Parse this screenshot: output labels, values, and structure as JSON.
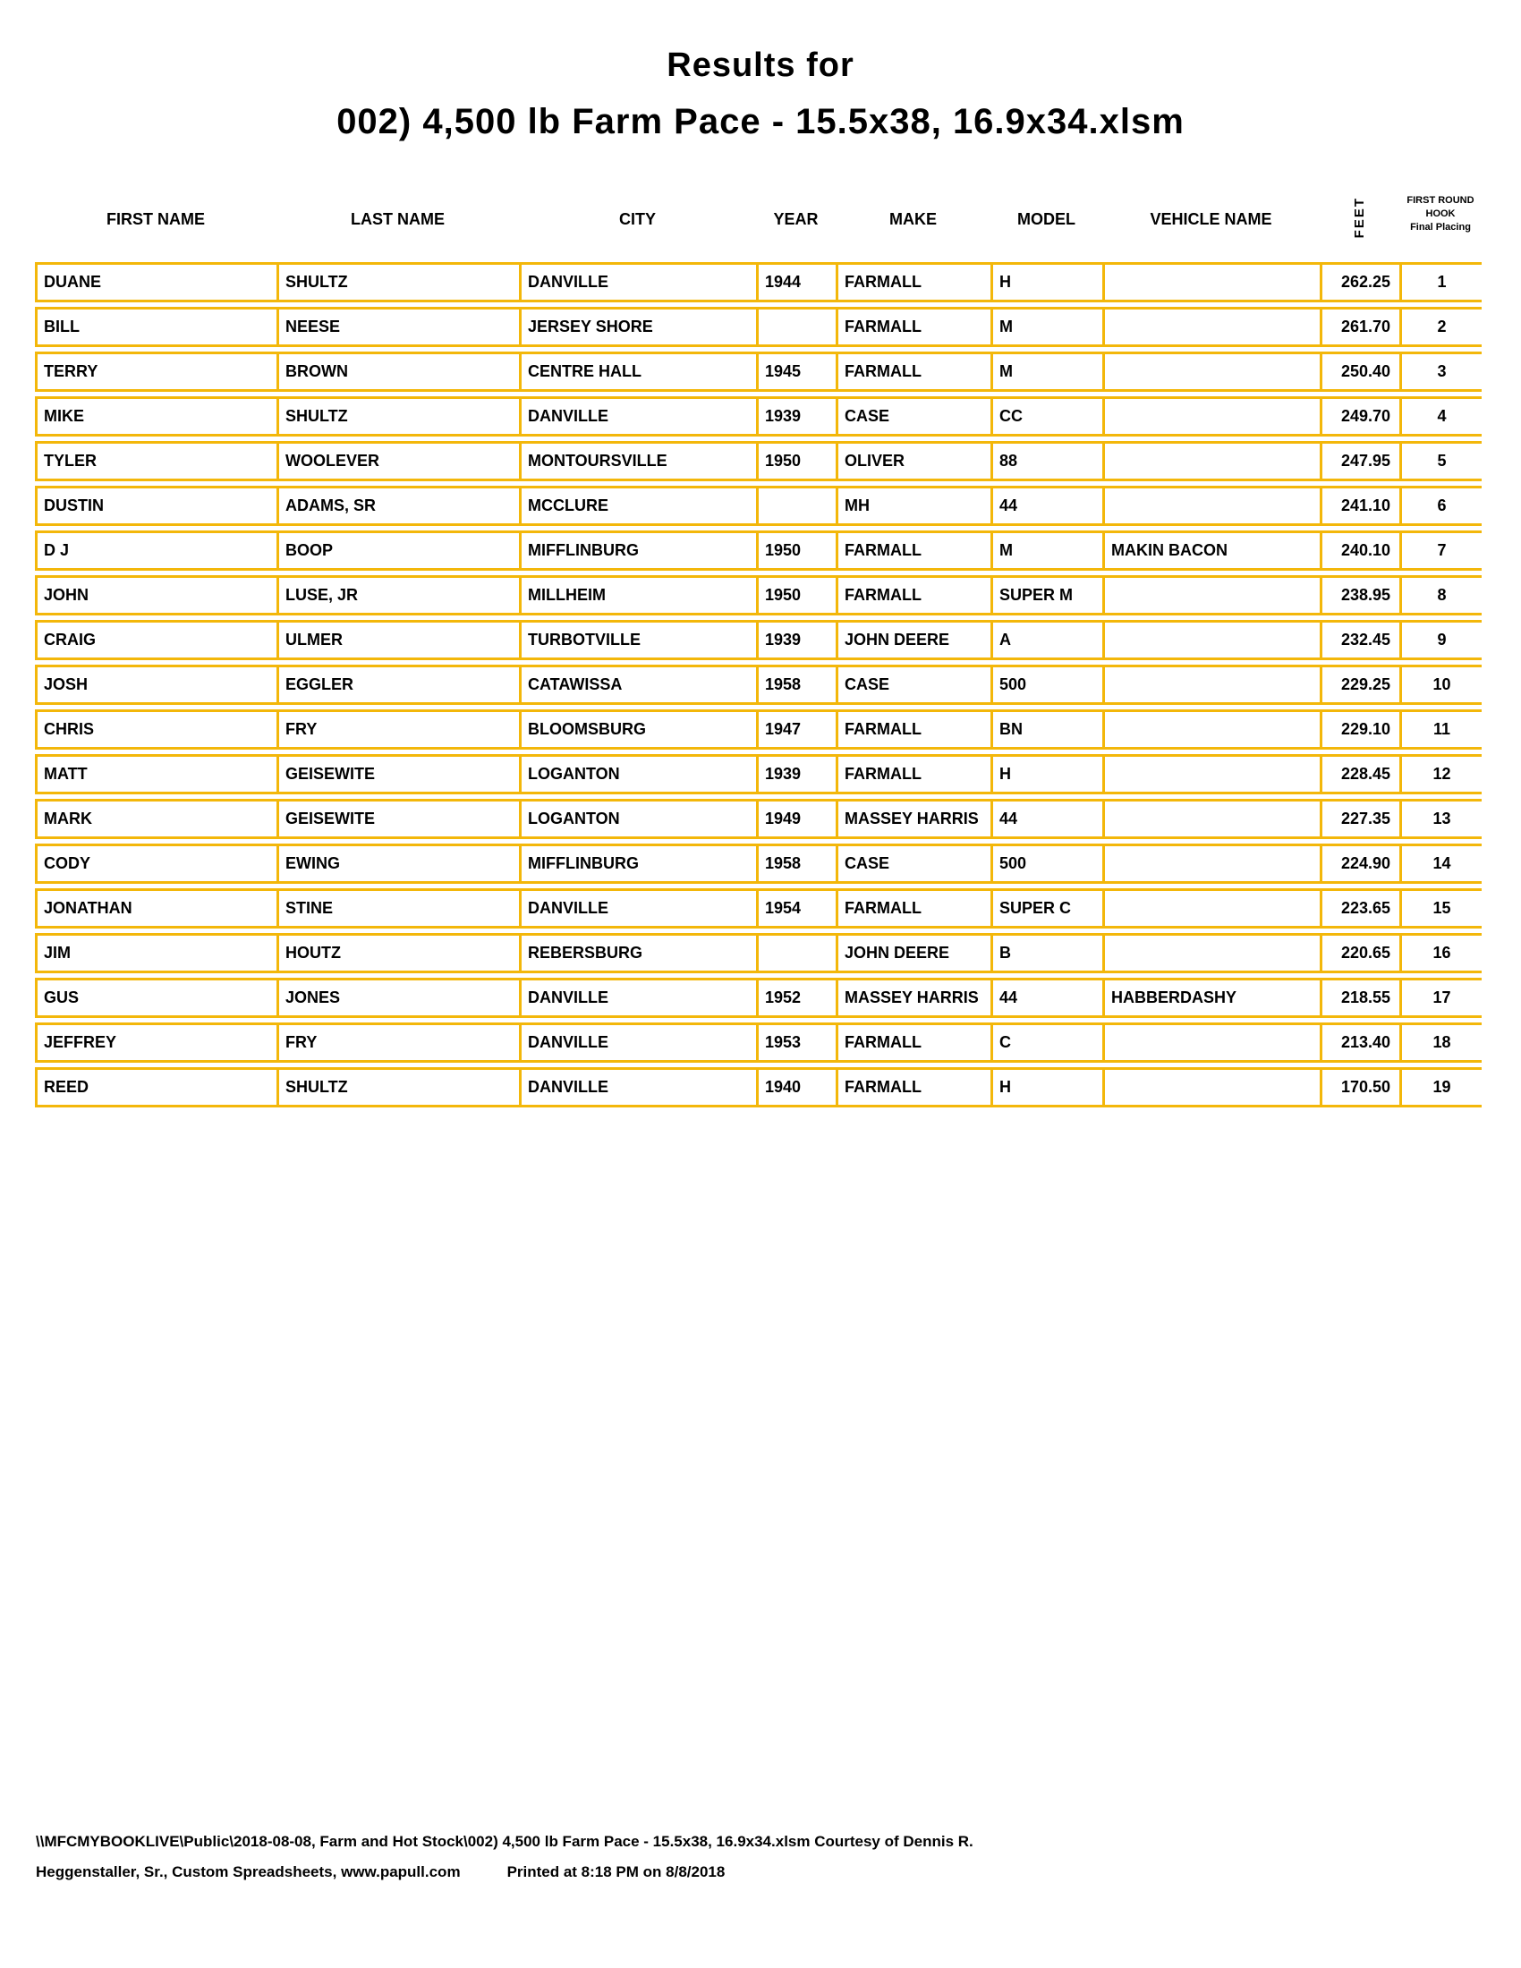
{
  "title": {
    "line1": "Results for",
    "line2": "002) 4,500 lb Farm Pace - 15.5x38, 16.9x34.xlsm"
  },
  "colors": {
    "border_gold": "#F3B70A",
    "text": "#000000",
    "background": "#FFFFFF"
  },
  "table": {
    "columns": [
      "FIRST NAME",
      "LAST NAME",
      "CITY",
      "YEAR",
      "MAKE",
      "MODEL",
      "VEHICLE NAME",
      "FEET"
    ],
    "hook_header": {
      "line1": "FIRST ROUND",
      "line2": "HOOK",
      "line3": "Final Placing"
    },
    "rows": [
      {
        "first_name": "DUANE",
        "last_name": "SHULTZ",
        "city": "DANVILLE",
        "year": "1944",
        "make": "FARMALL",
        "model": "H",
        "vehicle_name": "",
        "feet": "262.25",
        "placing": "1"
      },
      {
        "first_name": "BILL",
        "last_name": "NEESE",
        "city": "JERSEY SHORE",
        "year": "",
        "make": "FARMALL",
        "model": "M",
        "vehicle_name": "",
        "feet": "261.70",
        "placing": "2"
      },
      {
        "first_name": "TERRY",
        "last_name": "BROWN",
        "city": "CENTRE HALL",
        "year": "1945",
        "make": "FARMALL",
        "model": "M",
        "vehicle_name": "",
        "feet": "250.40",
        "placing": "3"
      },
      {
        "first_name": "MIKE",
        "last_name": "SHULTZ",
        "city": "DANVILLE",
        "year": "1939",
        "make": "CASE",
        "model": "CC",
        "vehicle_name": "",
        "feet": "249.70",
        "placing": "4"
      },
      {
        "first_name": "TYLER",
        "last_name": "WOOLEVER",
        "city": "MONTOURSVILLE",
        "year": "1950",
        "make": "OLIVER",
        "model": "88",
        "vehicle_name": "",
        "feet": "247.95",
        "placing": "5"
      },
      {
        "first_name": "DUSTIN",
        "last_name": "ADAMS, SR",
        "city": "MCCLURE",
        "year": "",
        "make": "MH",
        "model": "44",
        "vehicle_name": "",
        "feet": "241.10",
        "placing": "6"
      },
      {
        "first_name": "D J",
        "last_name": "BOOP",
        "city": "MIFFLINBURG",
        "year": "1950",
        "make": "FARMALL",
        "model": "M",
        "vehicle_name": "MAKIN BACON",
        "feet": "240.10",
        "placing": "7"
      },
      {
        "first_name": "JOHN",
        "last_name": "LUSE, JR",
        "city": "MILLHEIM",
        "year": "1950",
        "make": "FARMALL",
        "model": "SUPER M",
        "vehicle_name": "",
        "feet": "238.95",
        "placing": "8"
      },
      {
        "first_name": "CRAIG",
        "last_name": "ULMER",
        "city": "TURBOTVILLE",
        "year": "1939",
        "make": "JOHN DEERE",
        "model": "A",
        "vehicle_name": "",
        "feet": "232.45",
        "placing": "9"
      },
      {
        "first_name": "JOSH",
        "last_name": "EGGLER",
        "city": "CATAWISSA",
        "year": "1958",
        "make": "CASE",
        "model": "500",
        "vehicle_name": "",
        "feet": "229.25",
        "placing": "10"
      },
      {
        "first_name": "CHRIS",
        "last_name": "FRY",
        "city": "BLOOMSBURG",
        "year": "1947",
        "make": "FARMALL",
        "model": "BN",
        "vehicle_name": "",
        "feet": "229.10",
        "placing": "11"
      },
      {
        "first_name": "MATT",
        "last_name": "GEISEWITE",
        "city": "LOGANTON",
        "year": "1939",
        "make": "FARMALL",
        "model": "H",
        "vehicle_name": "",
        "feet": "228.45",
        "placing": "12"
      },
      {
        "first_name": "MARK",
        "last_name": "GEISEWITE",
        "city": "LOGANTON",
        "year": "1949",
        "make": "MASSEY HARRIS",
        "model": "44",
        "vehicle_name": "",
        "feet": "227.35",
        "placing": "13"
      },
      {
        "first_name": "CODY",
        "last_name": "EWING",
        "city": "MIFFLINBURG",
        "year": "1958",
        "make": "CASE",
        "model": "500",
        "vehicle_name": "",
        "feet": "224.90",
        "placing": "14"
      },
      {
        "first_name": "JONATHAN",
        "last_name": "STINE",
        "city": "DANVILLE",
        "year": "1954",
        "make": "FARMALL",
        "model": "SUPER C",
        "vehicle_name": "",
        "feet": "223.65",
        "placing": "15"
      },
      {
        "first_name": "JIM",
        "last_name": "HOUTZ",
        "city": "REBERSBURG",
        "year": "",
        "make": "JOHN DEERE",
        "model": "B",
        "vehicle_name": "",
        "feet": "220.65",
        "placing": "16"
      },
      {
        "first_name": "GUS",
        "last_name": "JONES",
        "city": "DANVILLE",
        "year": "1952",
        "make": "MASSEY HARRIS",
        "model": "44",
        "vehicle_name": "HABBERDASHY",
        "feet": "218.55",
        "placing": "17"
      },
      {
        "first_name": "JEFFREY",
        "last_name": "FRY",
        "city": "DANVILLE",
        "year": "1953",
        "make": "FARMALL",
        "model": "C",
        "vehicle_name": "",
        "feet": "213.40",
        "placing": "18"
      },
      {
        "first_name": "REED",
        "last_name": "SHULTZ",
        "city": "DANVILLE",
        "year": "1940",
        "make": "FARMALL",
        "model": "H",
        "vehicle_name": "",
        "feet": "170.50",
        "placing": "19"
      }
    ]
  },
  "footer": {
    "line1": "\\\\MFCMYBOOKLIVE\\Public\\2018-08-08, Farm and Hot Stock\\002) 4,500 lb Farm Pace - 15.5x38, 16.9x34.xlsm  Courtesy of Dennis R.",
    "line2_left": "Heggenstaller, Sr., Custom Spreadsheets, www.papull.com",
    "line2_right": "Printed at 8:18 PM on 8/8/2018"
  }
}
